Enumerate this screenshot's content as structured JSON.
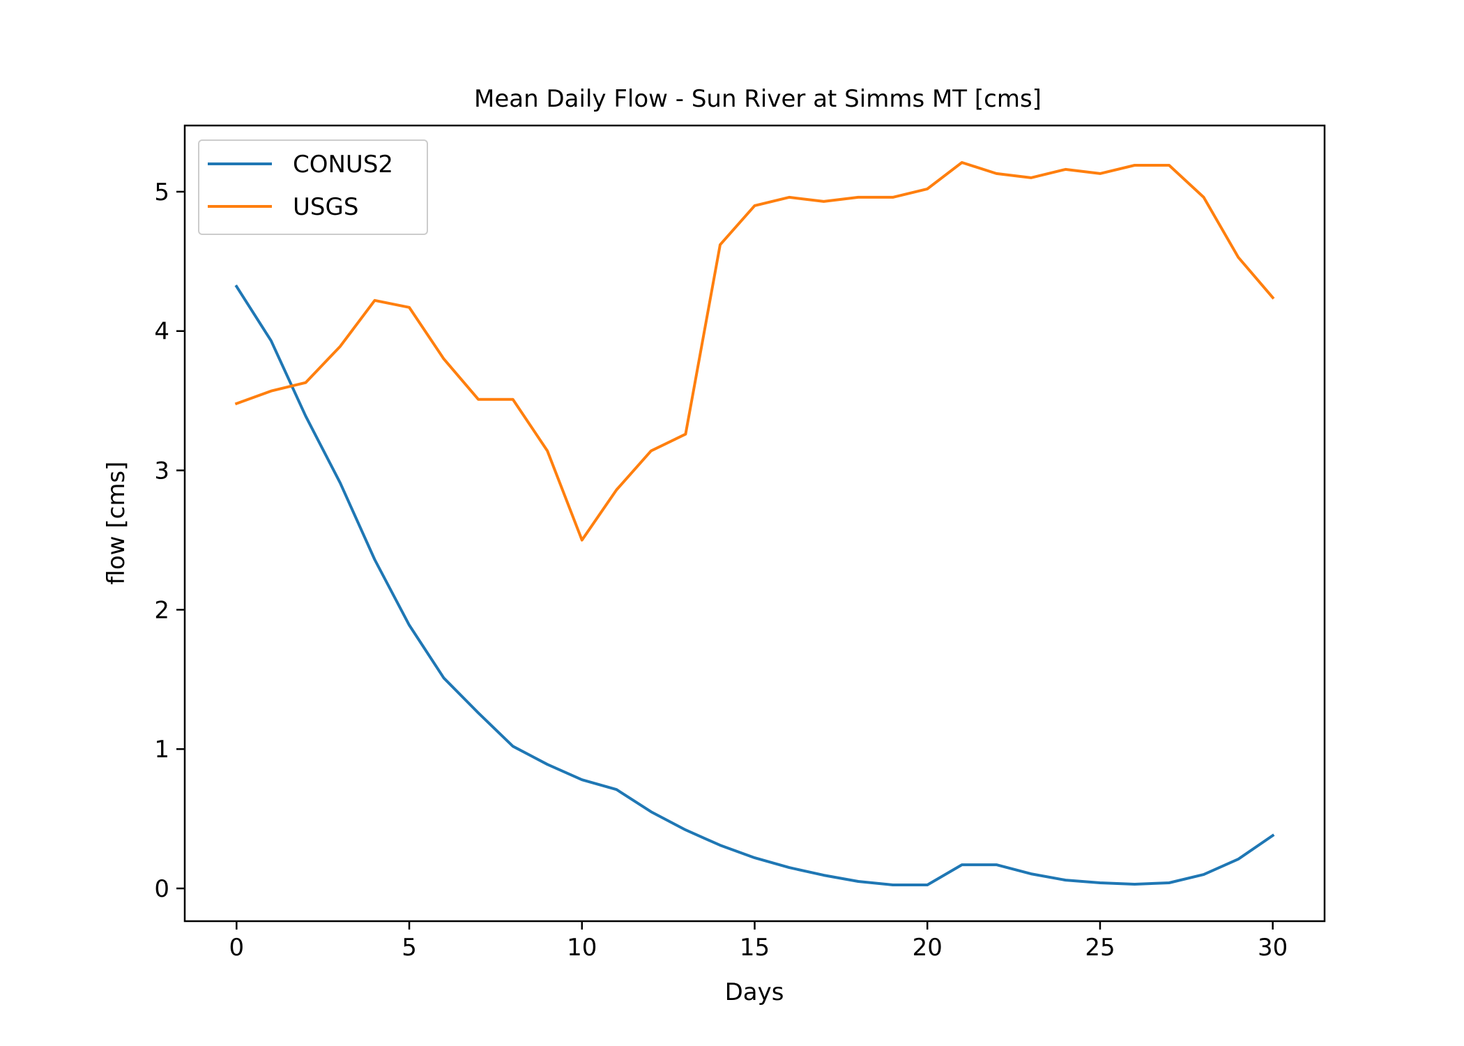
{
  "chart_data": {
    "type": "line",
    "title": "Mean Daily Flow - Sun River at Simms MT [cms]",
    "xlabel": "Days",
    "ylabel": "flow [cms]",
    "xlim": [
      -1.5,
      31.5
    ],
    "ylim": [
      -0.235,
      5.475
    ],
    "xticks": [
      0,
      5,
      10,
      15,
      20,
      25,
      30
    ],
    "yticks": [
      0,
      1,
      2,
      3,
      4,
      5
    ],
    "grid": false,
    "legend_position": "top-left",
    "x": [
      0,
      1,
      2,
      3,
      4,
      5,
      6,
      7,
      8,
      9,
      10,
      11,
      12,
      13,
      14,
      15,
      16,
      17,
      18,
      19,
      20,
      21,
      22,
      23,
      24,
      25,
      26,
      27,
      28,
      29,
      30
    ],
    "series": [
      {
        "name": "CONUS2",
        "color": "#1f77b4",
        "values": [
          4.32,
          3.93,
          3.39,
          2.91,
          2.36,
          1.89,
          1.51,
          1.26,
          1.02,
          0.89,
          0.78,
          0.71,
          0.55,
          0.42,
          0.31,
          0.22,
          0.15,
          0.095,
          0.05,
          0.025,
          0.025,
          0.17,
          0.17,
          0.105,
          0.06,
          0.04,
          0.03,
          0.04,
          0.1,
          0.21,
          0.38
        ]
      },
      {
        "name": "USGS",
        "color": "#ff7f0e",
        "values": [
          3.48,
          3.57,
          3.63,
          3.89,
          4.22,
          4.17,
          3.8,
          3.51,
          3.51,
          3.14,
          2.5,
          2.86,
          3.14,
          3.26,
          4.62,
          4.9,
          4.96,
          4.93,
          4.96,
          4.96,
          5.02,
          5.21,
          5.13,
          5.1,
          5.16,
          5.13,
          5.19,
          5.19,
          4.96,
          4.53,
          4.24
        ]
      }
    ]
  }
}
